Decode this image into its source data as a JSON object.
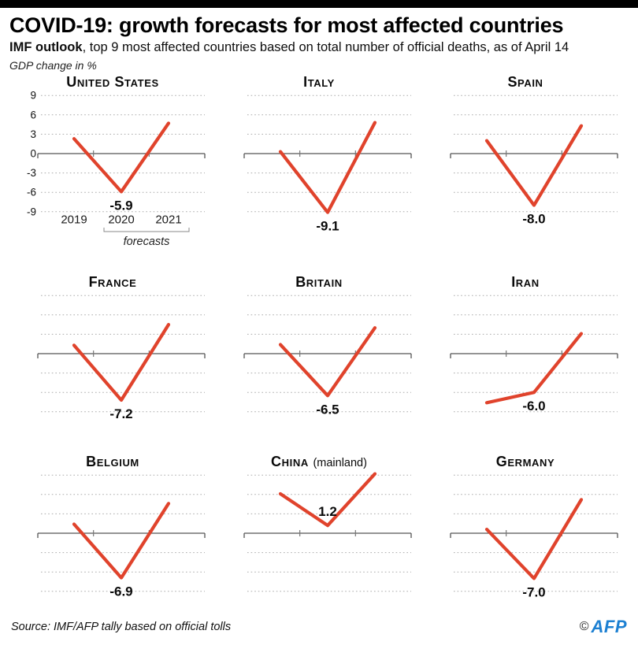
{
  "header": {
    "title": "COVID-19: growth forecasts for most affected countries",
    "subtitle_lead": "IMF outlook",
    "subtitle_rest": ", top 9 most affected countries based on total number of official deaths, as of April 14",
    "unit": "GDP change in %"
  },
  "chart_data": {
    "type": "line",
    "x": [
      "2019",
      "2020",
      "2021"
    ],
    "ylim": [
      -9,
      9
    ],
    "y_gridlines": [
      9,
      6,
      3,
      0,
      -3,
      -6,
      -9
    ],
    "y_tick_labels": [
      "9",
      "6",
      "3",
      "0",
      "-3",
      "-6",
      "-9"
    ],
    "grid": "dotted",
    "axis_labels_chart_index": 0,
    "forecasts_label": "forecasts",
    "forecast_years": [
      "2020",
      "2021"
    ],
    "series": [
      {
        "name": "United States",
        "values": [
          2.3,
          -5.9,
          4.7
        ],
        "label": "-5.9",
        "label_side": "below"
      },
      {
        "name": "Italy",
        "values": [
          0.3,
          -9.1,
          4.8
        ],
        "label": "-9.1",
        "label_side": "below"
      },
      {
        "name": "Spain",
        "values": [
          2.0,
          -8.0,
          4.3
        ],
        "label": "-8.0",
        "label_side": "below"
      },
      {
        "name": "France",
        "values": [
          1.3,
          -7.2,
          4.5
        ],
        "label": "-7.2",
        "label_side": "below"
      },
      {
        "name": "Britain",
        "values": [
          1.4,
          -6.5,
          4.0
        ],
        "label": "-6.5",
        "label_side": "below"
      },
      {
        "name": "Iran",
        "values": [
          -7.6,
          -6.0,
          3.1
        ],
        "label": "-6.0",
        "label_side": "below"
      },
      {
        "name": "Belgium",
        "values": [
          1.4,
          -6.9,
          4.6
        ],
        "label": "-6.9",
        "label_side": "below"
      },
      {
        "name": "China",
        "suffix": "(mainland)",
        "values": [
          6.1,
          1.2,
          9.2
        ],
        "label": "1.2",
        "label_side": "above"
      },
      {
        "name": "Germany",
        "values": [
          0.6,
          -7.0,
          5.2
        ],
        "label": "-7.0",
        "label_side": "below"
      }
    ]
  },
  "footer": {
    "source": "Source: IMF/AFP tally based on official tolls",
    "copyright_symbol": "©",
    "logo_text": "AFP"
  },
  "colors": {
    "line_red": "#e0432c",
    "grid_gray": "#ababab",
    "axis_gray": "#555555",
    "tick_gray": "#777777",
    "logo_blue": "#1d80d2",
    "top_bar": "#000000"
  }
}
